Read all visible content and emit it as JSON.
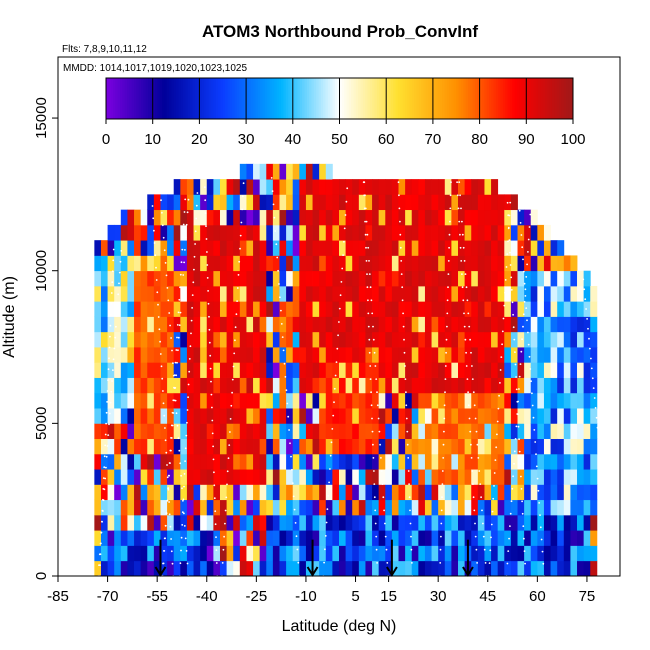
{
  "chart_data": {
    "type": "heatmap",
    "title": "ATOM3 Northbound Prob_ConvInf",
    "notes": [
      "Flts: 7,8,9,10,11,12",
      "MMDD: 1014,1017,1019,1020,1023,1025"
    ],
    "xlabel": "Latitude (deg N)",
    "ylabel": "Altitude (m)",
    "xlim": [
      -85,
      85
    ],
    "ylim": [
      0,
      17000
    ],
    "x_ticks": [
      -85,
      -70,
      -55,
      -40,
      -25,
      -10,
      5,
      15,
      30,
      45,
      60,
      75
    ],
    "y_ticks": [
      0,
      5000,
      10000,
      15000
    ],
    "colorbar": {
      "min": 0,
      "max": 100,
      "ticks": [
        0,
        10,
        20,
        30,
        40,
        50,
        60,
        70,
        80,
        90,
        100
      ],
      "placement": "top-inside"
    },
    "bin": {
      "lat_width": 2,
      "alt_height": 500
    },
    "profile_top_altitude": [
      [
        -74,
        10500
      ],
      [
        -70,
        11000
      ],
      [
        -66,
        11500
      ],
      [
        -62,
        11700
      ],
      [
        -58,
        12000
      ],
      [
        -54,
        12300
      ],
      [
        -50,
        12500
      ],
      [
        -46,
        12600
      ],
      [
        -42,
        12700
      ],
      [
        -38,
        12800
      ],
      [
        -34,
        12900
      ],
      [
        -30,
        13000
      ],
      [
        -26,
        13100
      ],
      [
        -22,
        13000
      ],
      [
        -18,
        13100
      ],
      [
        -14,
        13300
      ],
      [
        -10,
        13500
      ],
      [
        -6,
        13200
      ],
      [
        -2,
        13000
      ],
      [
        2,
        12900
      ],
      [
        6,
        12900
      ],
      [
        10,
        12900
      ],
      [
        14,
        12900
      ],
      [
        18,
        12900
      ],
      [
        22,
        12900
      ],
      [
        26,
        12900
      ],
      [
        30,
        12900
      ],
      [
        34,
        12900
      ],
      [
        38,
        12900
      ],
      [
        42,
        12900
      ],
      [
        46,
        12600
      ],
      [
        50,
        12300
      ],
      [
        54,
        12000
      ],
      [
        58,
        11800
      ],
      [
        62,
        11300
      ],
      [
        66,
        10800
      ],
      [
        70,
        10300
      ],
      [
        74,
        9700
      ],
      [
        78,
        9000
      ]
    ],
    "high_probability_regions": [
      {
        "lat": [
          -46,
          -22
        ],
        "alt": [
          3000,
          11500
        ],
        "value": 95
      },
      {
        "lat": [
          -12,
          50
        ],
        "alt": [
          6000,
          12800
        ],
        "value": 95
      },
      {
        "lat": [
          -12,
          0
        ],
        "alt": [
          10000,
          12500
        ],
        "value": 95
      },
      {
        "lat": [
          -62,
          -50
        ],
        "alt": [
          4000,
          10500
        ],
        "value": 85
      },
      {
        "lat": [
          -6,
          12
        ],
        "alt": [
          4000,
          7000
        ],
        "value": 88
      },
      {
        "lat": [
          24,
          50
        ],
        "alt": [
          3000,
          6000
        ],
        "value": 82
      }
    ],
    "low_probability_regions": [
      {
        "lat": [
          -72,
          -40
        ],
        "alt": [
          0,
          1500
        ],
        "value": 5
      },
      {
        "lat": [
          -22,
          75
        ],
        "alt": [
          0,
          2000
        ],
        "value": 8
      },
      {
        "lat": [
          55,
          78
        ],
        "alt": [
          2000,
          10000
        ],
        "value": 20
      },
      {
        "lat": [
          -74,
          -64
        ],
        "alt": [
          5000,
          10500
        ],
        "value": 30
      }
    ],
    "flight_track_color": "#ffffff",
    "arrow_markers_lat": [
      -54,
      -8,
      16,
      39
    ],
    "colormap": [
      "#7b00e0",
      "#00009a",
      "#0b3dff",
      "#00b4ff",
      "#ffffff",
      "#ffe030",
      "#ff9000",
      "#ff0000",
      "#a01818"
    ]
  }
}
